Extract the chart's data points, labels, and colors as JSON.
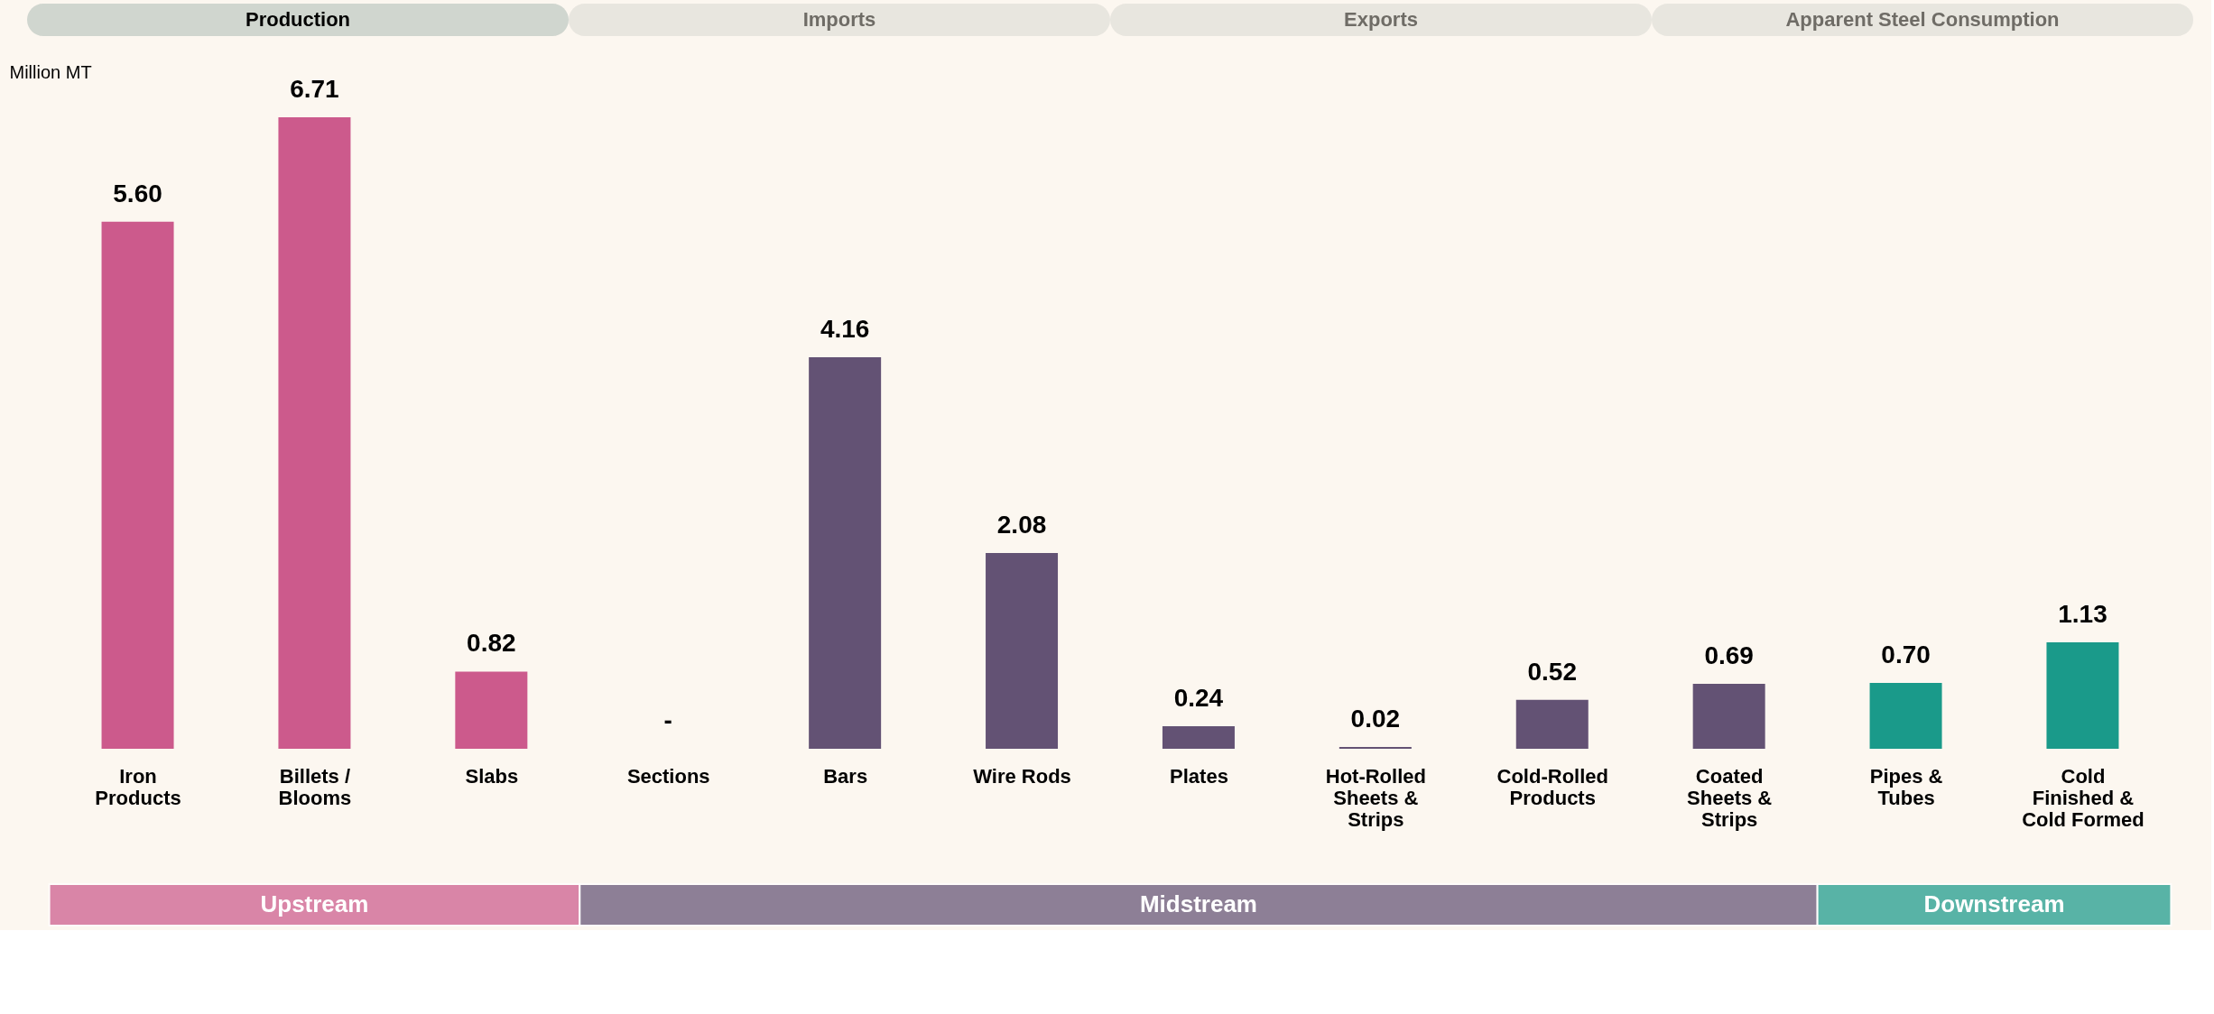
{
  "chart_data": {
    "type": "bar",
    "ylabel": "Million MT",
    "categories": [
      "Iron Products",
      "Billets / Blooms",
      "Slabs",
      "Sections",
      "Bars",
      "Wire Rods",
      "Plates",
      "Hot-Rolled Sheets & Strips",
      "Cold-Rolled Products",
      "Coated Sheets & Strips",
      "Pipes & Tubes",
      "Cold Finished & Cold Formed"
    ],
    "values": [
      5.6,
      6.71,
      0.82,
      0,
      4.16,
      2.08,
      0.24,
      0.02,
      0.52,
      0.69,
      0.7,
      1.13
    ],
    "value_labels": [
      "5.60",
      "6.71",
      "0.82",
      "-",
      "4.16",
      "2.08",
      "0.24",
      "0.02",
      "0.52",
      "0.69",
      "0.70",
      "1.13"
    ],
    "colors": [
      "#cc5a8c",
      "#cc5a8c",
      "#cc5a8c",
      "#635274",
      "#635274",
      "#635274",
      "#635274",
      "#635274",
      "#635274",
      "#635274",
      "#1a9a8a",
      "#1a9a8a"
    ],
    "tick_labels": "x",
    "grid": false,
    "annotations": [
      "Production",
      "Imports",
      "Exports",
      "Apparent Steel Consumption",
      "Upstream",
      "Midstream",
      "Downstream"
    ]
  }
}
